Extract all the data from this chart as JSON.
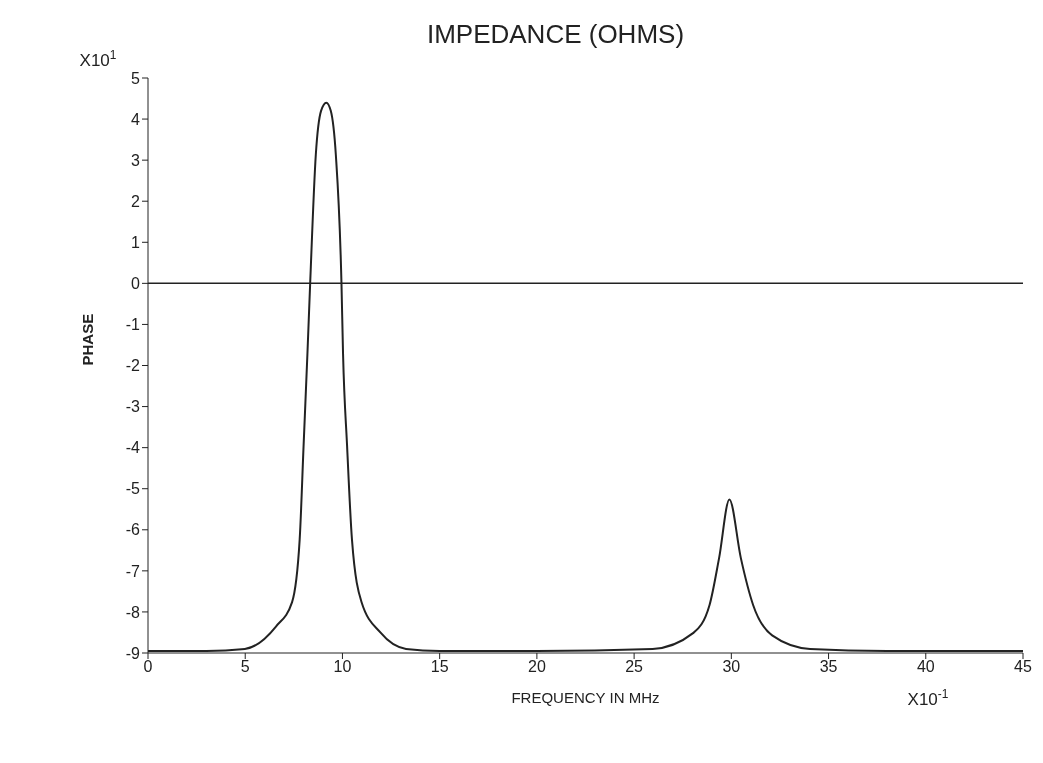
{
  "chart_data": {
    "type": "line",
    "title": "IMPEDANCE (OHMS)",
    "xlabel": "FREQUENCY IN MHz",
    "ylabel": "PHASE",
    "annotations": [
      "X10$^{1}$",
      "X10$^{-1}$"
    ],
    "xlim": [
      0,
      45
    ],
    "xticks": [
      0,
      5,
      10,
      15,
      20,
      25,
      30,
      35,
      40,
      45
    ],
    "ylim": [
      -9,
      5
    ],
    "yticks": [
      -9,
      -8,
      -7,
      -6,
      -5,
      -4,
      -3,
      -2,
      -1,
      0,
      1,
      2,
      3,
      4,
      5
    ],
    "ref_lines": [
      {
        "axis": "y",
        "value": 0,
        "color": "#222222"
      }
    ],
    "grid": false,
    "legend": false,
    "marker": "none",
    "line_style": "solid",
    "series": [
      {
        "color": "#222222",
        "x": [
          0,
          3,
          4.98,
          6.59,
          7.41,
          7.8,
          8.0,
          8.2,
          8.34,
          8.63,
          8.9,
          9.17,
          9.4,
          9.66,
          9.95,
          10.03,
          10.24,
          10.49,
          10.98,
          11.95,
          13.27,
          15,
          20,
          25.95,
          28.05,
          28.88,
          29.37,
          29.9,
          30.49,
          31.12,
          32.1,
          34.05,
          38,
          45
        ],
        "values": [
          -8.95,
          -8.95,
          -8.9,
          -8.35,
          -7.76,
          -6.24,
          -3.97,
          -1.7,
          0,
          3.13,
          4.2,
          4.4,
          4.2,
          3.13,
          0,
          -1.7,
          -3.97,
          -6.24,
          -7.76,
          -8.5,
          -8.9,
          -8.95,
          -8.95,
          -8.9,
          -8.51,
          -7.83,
          -6.69,
          -5.26,
          -6.69,
          -7.83,
          -8.57,
          -8.9,
          -8.95,
          -8.95
        ]
      }
    ]
  }
}
